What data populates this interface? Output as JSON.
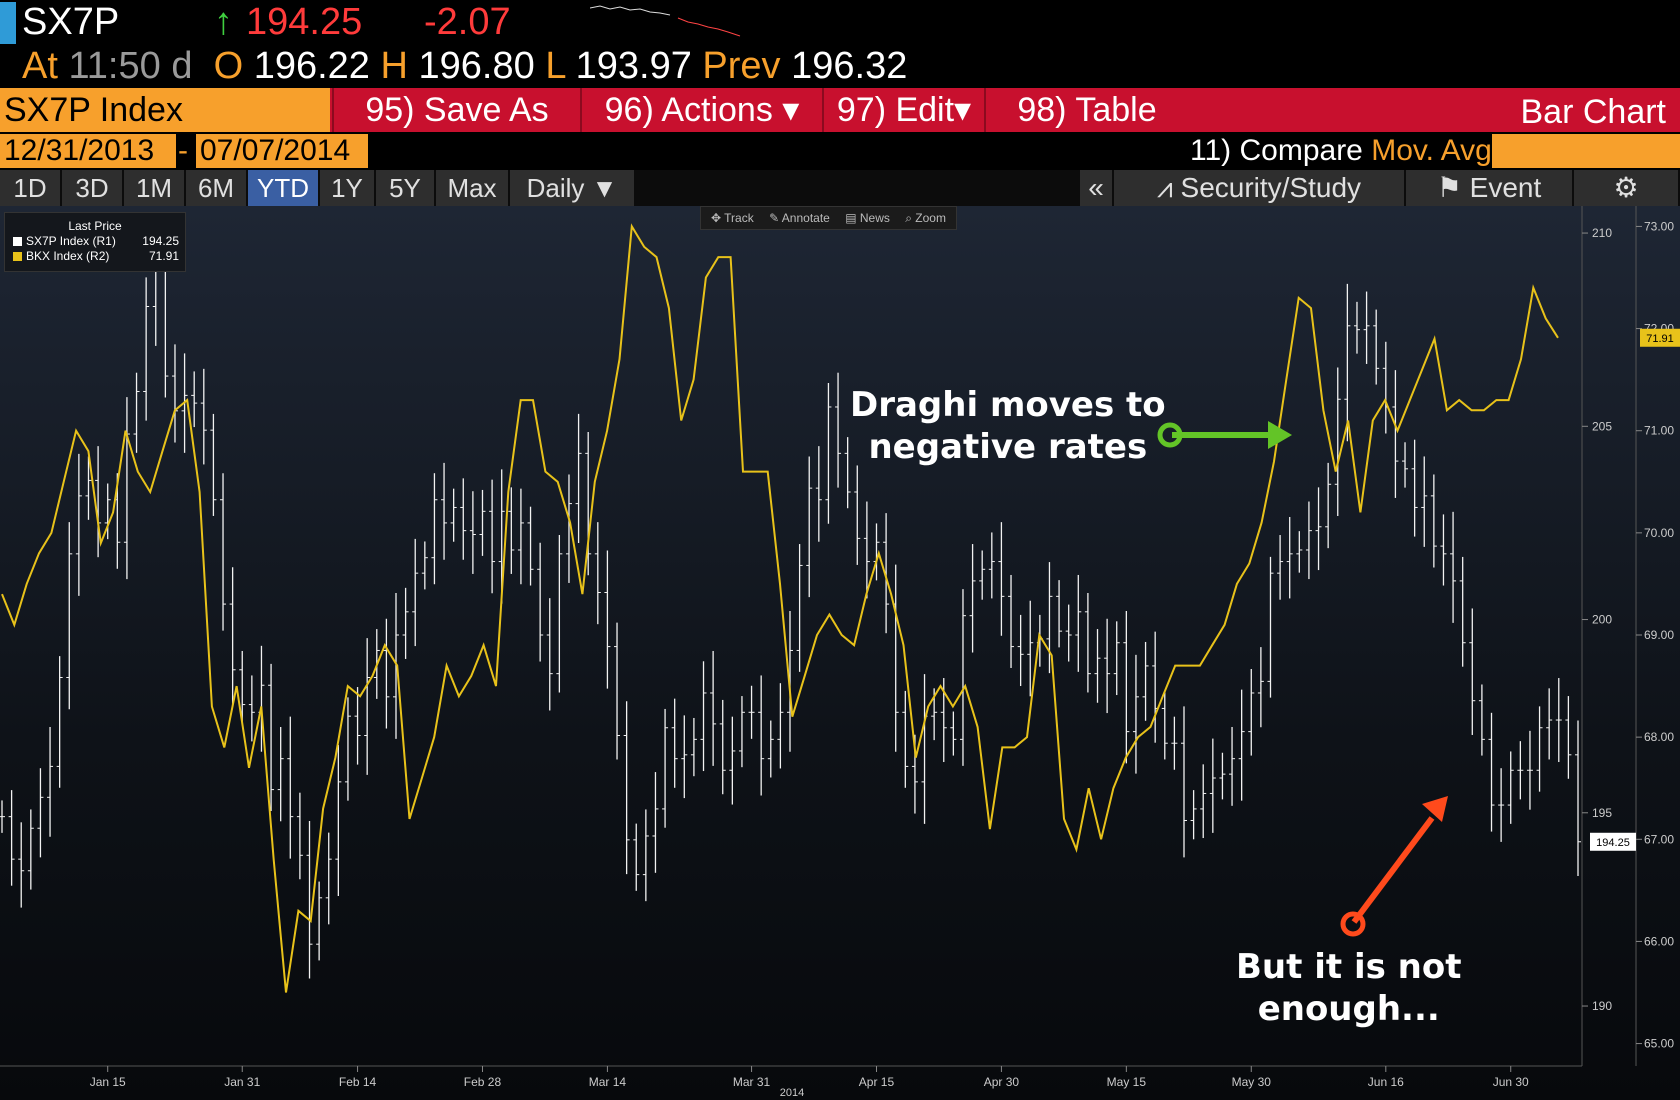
{
  "quote": {
    "symbol": "SX7P",
    "arrow": "↑",
    "last": "194.25",
    "change": "-2.07",
    "at_label": "At",
    "time": "11:50",
    "time_suffix": "d",
    "open_label": "O",
    "open": "196.22",
    "high_label": "H",
    "high": "196.80",
    "low_label": "L",
    "low": "193.97",
    "prev_label": "Prev",
    "prev": "196.32"
  },
  "menu": {
    "security": "SX7P Index",
    "items": [
      "95) Save As",
      "96) Actions ▾",
      "97) Edit▾",
      "98) Table"
    ],
    "title": "Bar Chart"
  },
  "dates": {
    "start": "12/31/2013",
    "separator": "-",
    "end": "07/07/2014",
    "compare_num": "11)",
    "compare_label": "Compare",
    "mov_avgs": "Mov. Avgs"
  },
  "ranges": [
    "1D",
    "3D",
    "1M",
    "6M",
    "YTD",
    "1Y",
    "5Y",
    "Max"
  ],
  "active_range": "YTD",
  "frequency": "Daily ▼",
  "right_controls": {
    "collapse": "«",
    "study": "Security/Study",
    "event": "Event",
    "settings_icon": "gear-icon"
  },
  "tools": [
    "✥ Track",
    "✎ Annotate",
    "▤ News",
    "⌕ Zoom"
  ],
  "legend": {
    "title": "Last Price",
    "rows": [
      {
        "name": "SX7P Index  (R1)",
        "value": "194.25",
        "color": "#ffffff"
      },
      {
        "name": "BKX Index  (R2)",
        "value": "71.91",
        "color": "#e8c21a"
      }
    ]
  },
  "annotations": {
    "draghi": [
      "Draghi moves to",
      "negative rates"
    ],
    "enough": [
      "But it is not",
      "enough..."
    ]
  },
  "chart_data": {
    "type": "line",
    "year_label": "2014",
    "x_ticks": [
      "Jan 15",
      "Jan 31",
      "Feb 14",
      "Feb 28",
      "Mar 14",
      "Mar 31",
      "Apr 15",
      "Apr 30",
      "May 15",
      "May 30",
      "Jun 16",
      "Jun 30"
    ],
    "y_axis_r1": {
      "ticks": [
        "190",
        "195",
        "200",
        "205",
        "210"
      ],
      "range": [
        188.5,
        210.7
      ]
    },
    "y_axis_r2": {
      "ticks": [
        "65.00",
        "66.00",
        "67.00",
        "68.00",
        "69.00",
        "70.00",
        "71.00",
        "72.00",
        "73.00"
      ],
      "range": [
        64.8,
        73.2
      ]
    },
    "last_labels": {
      "r1": "194.25",
      "r2": "71.91"
    },
    "series": [
      {
        "name": "SX7P Index  (R1)",
        "style": "ohlc",
        "color": "#ffffff",
        "values": [
          194.9,
          193.8,
          193.5,
          194.6,
          195.4,
          196.2,
          198.5,
          201.7,
          203.2,
          203.6,
          202.5,
          203.1,
          202.0,
          204.8,
          205.9,
          208.1,
          209.3,
          206.3,
          205.4,
          205.8,
          205.6,
          204.9,
          203.1,
          200.4,
          198.7,
          197.8,
          197.6,
          198.3,
          195.6,
          196.4,
          194.9,
          193.9,
          191.6,
          192.8,
          193.8,
          195.8,
          197.5,
          197.0,
          198.5,
          199.2,
          198.0,
          199.6,
          200.2,
          201.2,
          201.6,
          203.1,
          202.5,
          202.9,
          202.3,
          202.2,
          202.8,
          201.5,
          202.8,
          201.8,
          202.5,
          201.3,
          199.6,
          198.6,
          201.7,
          203.0,
          204.3,
          201.7,
          200.7,
          199.3,
          197.0,
          194.3,
          193.4,
          194.4,
          195.1,
          197.2,
          196.4,
          196.5,
          196.9,
          198.1,
          197.3,
          196.1,
          196.6,
          197.6,
          197.6,
          196.4,
          196.9,
          197.6,
          199.2,
          201.4,
          203.4,
          203.1,
          205.5,
          204.3,
          203.3,
          202.1,
          201.5,
          202.0,
          200.4,
          197.6,
          196.2,
          195.8,
          197.5,
          197.6,
          197.2,
          196.9,
          200.1,
          201.0,
          201.3,
          201.5,
          200.6,
          199.3,
          199.1,
          199.4,
          199.5,
          200.6,
          199.7,
          199.6,
          200.2,
          198.6,
          199.0,
          198.6,
          199.4,
          197.1,
          198.0,
          198.8,
          197.7,
          196.8,
          196.8,
          194.8,
          195.1,
          195.5,
          195.9,
          196.0,
          196.4,
          197.1,
          198.1,
          198.4,
          201.2,
          201.5,
          201.7,
          201.8,
          202.3,
          202.4,
          203.5,
          205.7,
          207.6,
          207.5,
          207.6,
          206.5,
          205.5,
          204.1,
          203.9,
          202.9,
          203.2,
          201.9,
          201.7,
          201.0,
          199.4,
          197.9,
          196.9,
          195.2,
          195.2,
          196.1,
          196.1,
          196.1,
          197.2,
          197.4,
          197.4,
          196.5,
          194.25
        ]
      },
      {
        "name": "BKX Index  (R2)",
        "style": "line",
        "color": "#e8c21a",
        "values": [
          69.4,
          69.1,
          69.5,
          69.8,
          70.0,
          70.5,
          71.0,
          70.8,
          69.9,
          70.2,
          71.0,
          70.6,
          70.4,
          70.8,
          71.2,
          71.3,
          70.4,
          68.3,
          67.9,
          68.5,
          67.7,
          68.3,
          66.8,
          65.5,
          66.3,
          66.2,
          67.3,
          67.8,
          68.5,
          68.4,
          68.6,
          68.9,
          68.7,
          67.2,
          67.6,
          68.0,
          68.7,
          68.4,
          68.6,
          68.9,
          68.5,
          70.4,
          71.3,
          71.3,
          70.6,
          70.5,
          70.1,
          69.4,
          70.5,
          71.0,
          71.7,
          73.0,
          72.8,
          72.7,
          72.2,
          71.1,
          71.5,
          72.5,
          72.7,
          72.7,
          70.6,
          70.6,
          70.6,
          69.5,
          68.2,
          68.6,
          69.0,
          69.2,
          69.0,
          68.9,
          69.4,
          69.8,
          69.4,
          68.9,
          67.8,
          68.3,
          68.5,
          68.3,
          68.5,
          68.1,
          67.1,
          67.9,
          67.9,
          68.0,
          69.0,
          68.8,
          67.2,
          66.9,
          67.5,
          67.0,
          67.5,
          67.8,
          68.0,
          68.1,
          68.4,
          68.7,
          68.7,
          68.7,
          68.9,
          69.1,
          69.5,
          69.7,
          70.1,
          70.7,
          71.5,
          72.3,
          72.2,
          71.2,
          70.6,
          71.1,
          70.2,
          71.1,
          71.3,
          71.0,
          71.3,
          71.6,
          71.9,
          71.2,
          71.3,
          71.2,
          71.2,
          71.3,
          71.3,
          71.7,
          72.4,
          72.1,
          71.91
        ]
      }
    ]
  }
}
